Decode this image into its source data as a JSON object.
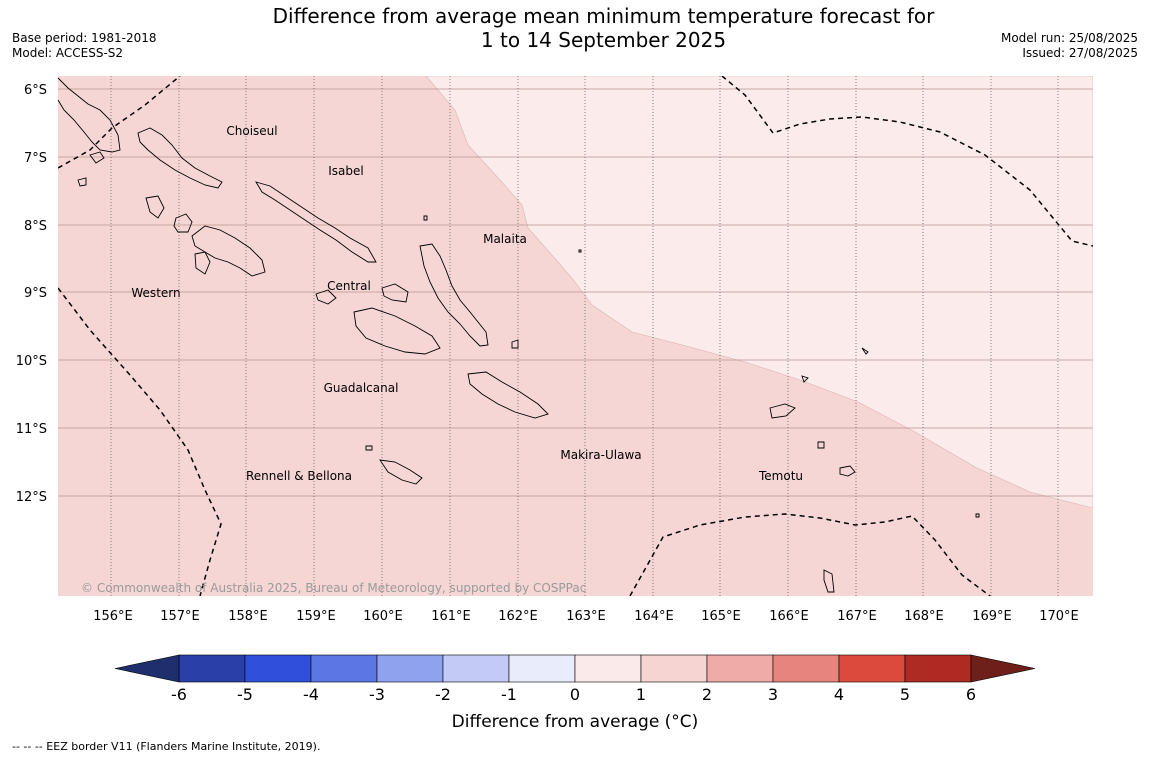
{
  "title": {
    "line1": "Difference from average mean minimum temperature forecast for",
    "line2": "1 to 14 September 2025"
  },
  "header_left": {
    "base_period": "Base period: 1981-2018",
    "model": "Model: ACCESS-S2"
  },
  "header_right": {
    "model_run": "Model run: 25/08/2025",
    "issued": "Issued: 27/08/2025"
  },
  "map": {
    "latitude_labels": [
      "6°S",
      "7°S",
      "8°S",
      "9°S",
      "10°S",
      "11°S",
      "12°S"
    ],
    "longitude_labels": [
      "156°E",
      "157°E",
      "158°E",
      "159°E",
      "160°E",
      "161°E",
      "162°E",
      "163°E",
      "164°E",
      "165°E",
      "166°E",
      "167°E",
      "168°E",
      "169°E",
      "170°E"
    ],
    "region_labels": [
      {
        "name": "Choiseul"
      },
      {
        "name": "Isabel"
      },
      {
        "name": "Malaita"
      },
      {
        "name": "Western"
      },
      {
        "name": "Central"
      },
      {
        "name": "Guadalcanal"
      },
      {
        "name": "Makira-Ulawa"
      },
      {
        "name": "Rennell & Bellona"
      },
      {
        "name": "Temotu"
      }
    ],
    "credit": "© Commonwealth of Australia 2025, Bureau of Meteorology, supported by COSPPac",
    "anomaly_zones": [
      {
        "range": "1 to 2",
        "color": "#f5d6d4"
      },
      {
        "range": "0 to 1",
        "color": "#fbebea"
      }
    ]
  },
  "colorbar": {
    "title": "Difference from average (°C)",
    "ticks": [
      "-6",
      "-5",
      "-4",
      "-3",
      "-2",
      "-1",
      "0",
      "1",
      "2",
      "3",
      "4",
      "5",
      "6"
    ],
    "under_color": "#1f2f6e",
    "over_color": "#6e1f1a",
    "colors": [
      "#2a3fa8",
      "#3050dc",
      "#5a77e4",
      "#8ea2ee",
      "#c2caf5",
      "#e9ecfb",
      "#fbeaea",
      "#f5d4d2",
      "#eeaba8",
      "#e6857d",
      "#dc4a3e",
      "#ae2a22"
    ]
  },
  "footnote": "--  --  -- EEZ border V11 (Flanders Marine Institute, 2019)."
}
